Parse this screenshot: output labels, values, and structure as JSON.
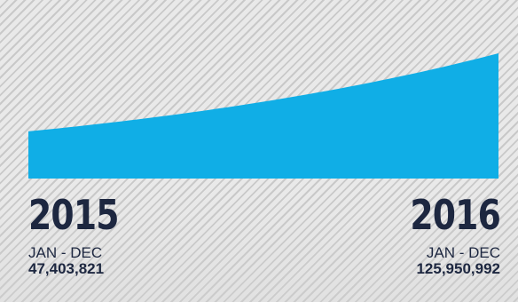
{
  "colors": {
    "area": "#10aee6",
    "text": "#1d2740"
  },
  "chart_data": {
    "type": "area",
    "x": [
      "2015",
      "2016"
    ],
    "series": [
      {
        "values": [
          47403821,
          125950992
        ]
      }
    ],
    "annotations": [
      {
        "year": "2015",
        "period": "JAN - DEC",
        "value_text": "47,403,821"
      },
      {
        "year": "2016",
        "period": "JAN - DEC",
        "value_text": "125,950,992"
      }
    ],
    "curve": "exponential",
    "grid": false,
    "legend": "none"
  }
}
